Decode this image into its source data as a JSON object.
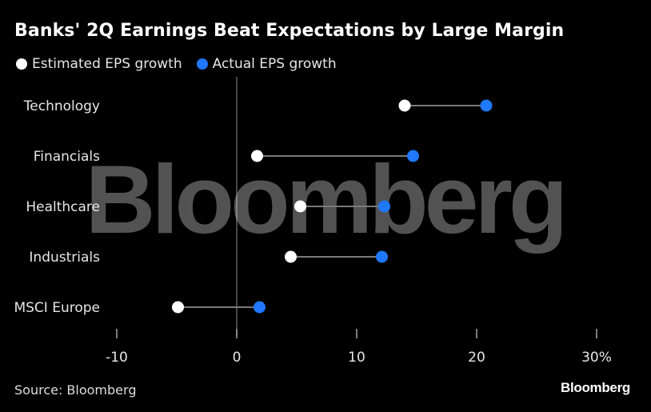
{
  "title": "Banks' 2Q Earnings Beat Expectations by Large Margin",
  "source": "Source: Bloomberg",
  "brand": "Bloomberg",
  "watermark": "Bloomberg",
  "colors": {
    "estimated": "#ffffff",
    "actual": "#1f78ff",
    "connector": "#7a7a7a",
    "background": "#000000"
  },
  "chart_data": {
    "type": "dumbbell",
    "title": "Banks' 2Q Earnings Beat Expectations by Large Margin",
    "categories": [
      "Technology",
      "Financials",
      "Healthcare",
      "Industrials",
      "MSCI Europe"
    ],
    "series": [
      {
        "name": "Estimated EPS growth",
        "values": [
          14,
          1.7,
          5.3,
          4.5,
          -4.9
        ]
      },
      {
        "name": "Actual EPS growth",
        "values": [
          20.8,
          14.7,
          12.3,
          12.1,
          1.9
        ]
      }
    ],
    "xlim": [
      -10,
      30
    ],
    "xticks": [
      -10,
      0,
      10,
      20,
      30
    ],
    "xtick_labels": [
      "-10",
      "0",
      "10",
      "20",
      "30%"
    ],
    "xlabel": "",
    "ylabel": "",
    "legend": "top-left",
    "grid": false
  }
}
